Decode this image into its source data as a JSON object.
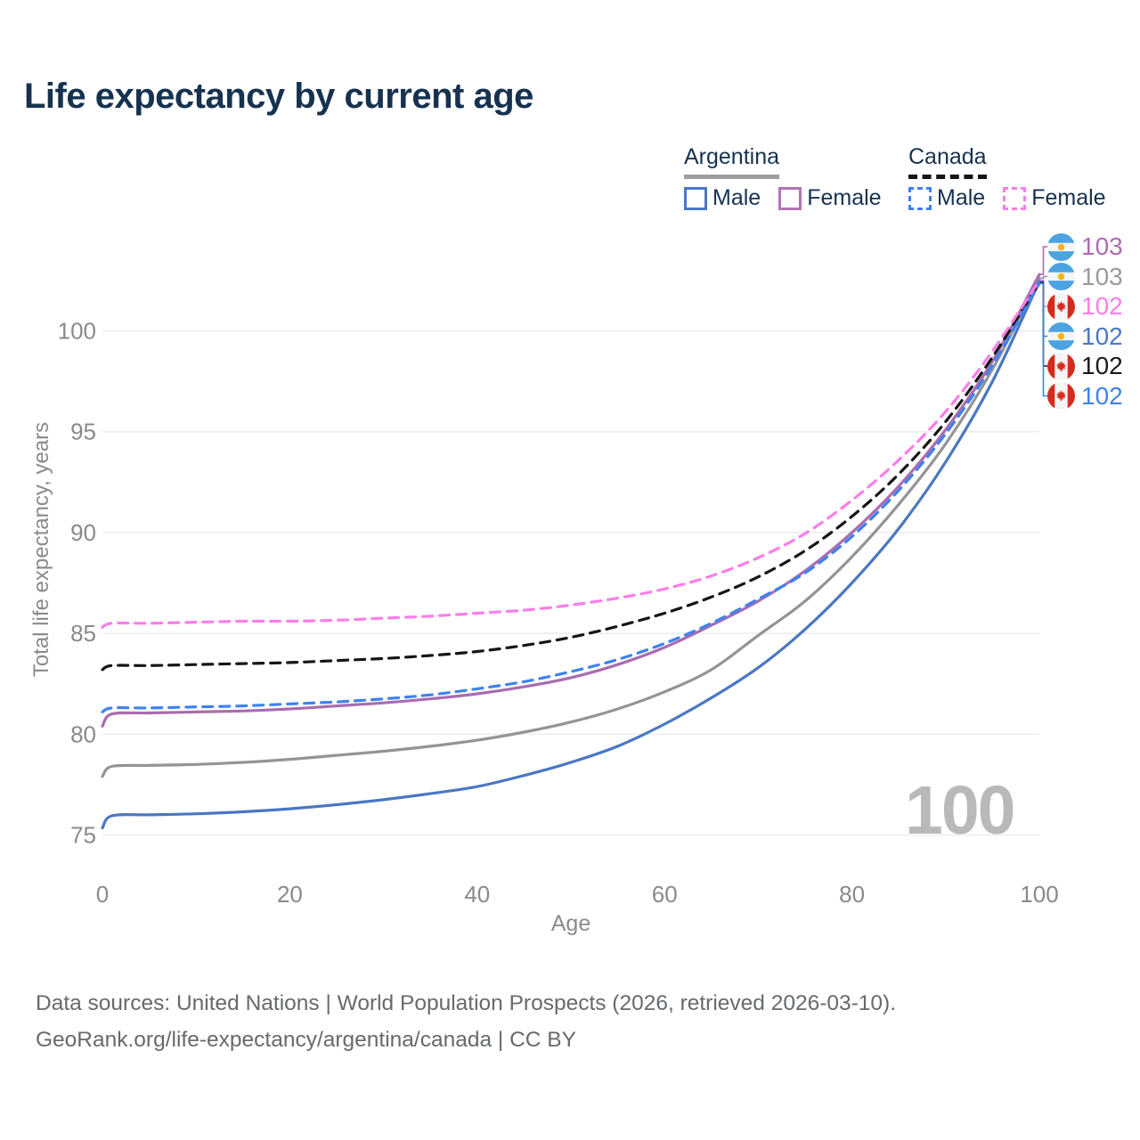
{
  "title": "Life expectancy by current age",
  "colors": {
    "title_text": "#16324f",
    "grid": "#ececec",
    "axis_text": "#8a8a8a",
    "watermark": "#b9b9b9",
    "argentina_male": "#4a77c4",
    "argentina_female": "#a96cb0",
    "argentina_both": "#949494",
    "canada_male": "#3e82f0",
    "canada_female": "#fc7de9",
    "canada_both": "#161616",
    "flag_argentina_blue": "#4ba3e2",
    "flag_argentina_sun": "#f6b40e",
    "flag_canada_red": "#d52b1e"
  },
  "legend": {
    "groups": [
      {
        "label": "Argentina",
        "line_style": "solid",
        "underline_color": "#9e9e9e",
        "items": [
          {
            "label": "Male",
            "color": "#4a77c4"
          },
          {
            "label": "Female",
            "color": "#b473b6"
          }
        ]
      },
      {
        "label": "Canada",
        "line_style": "dashed",
        "underline_color": "#151515",
        "items": [
          {
            "label": "Male",
            "color": "#3e82f0"
          },
          {
            "label": "Female",
            "color": "#fc7de9"
          }
        ]
      }
    ]
  },
  "watermark": "100",
  "end_labels": [
    {
      "flag": "argentina",
      "series": "Argentina Female",
      "value": "103",
      "color": "#ad6cb3"
    },
    {
      "flag": "argentina",
      "series": "Argentina Both sexes",
      "value": "103",
      "color": "#9a9a9a"
    },
    {
      "flag": "canada",
      "series": "Canada Female",
      "value": "102",
      "color": "#fc7de9"
    },
    {
      "flag": "argentina",
      "series": "Argentina Male",
      "value": "102",
      "color": "#4a77c4"
    },
    {
      "flag": "canada",
      "series": "Canada Both sexes",
      "value": "102",
      "color": "#1a1a1a"
    },
    {
      "flag": "canada",
      "series": "Canada Male",
      "value": "102",
      "color": "#3e82f0"
    }
  ],
  "footer": {
    "line1": "Data sources: United Nations | World Population Prospects (2026, retrieved 2026-03-10).",
    "line2": "GeoRank.org/life-expectancy/argentina/canada | CC BY"
  },
  "chart_data": {
    "type": "line",
    "title": "Life expectancy by current age",
    "xlabel": "Age",
    "ylabel": "Total life expectancy, years",
    "x_ticks": [
      0,
      20,
      40,
      60,
      80,
      100
    ],
    "y_ticks": [
      75,
      80,
      85,
      90,
      95,
      100
    ],
    "xlim": [
      0,
      100
    ],
    "ylim": [
      73.5,
      104.5
    ],
    "grid": "horizontal",
    "legend_position": "top-right",
    "x": [
      0,
      1,
      5,
      10,
      15,
      20,
      25,
      30,
      35,
      40,
      45,
      50,
      55,
      60,
      65,
      70,
      75,
      80,
      85,
      90,
      95,
      100
    ],
    "series": [
      {
        "name": "Argentina Both sexes",
        "country": "Argentina",
        "sex": "Both",
        "color": "#949494",
        "dash": false,
        "values": [
          77.9,
          78.4,
          78.45,
          78.5,
          78.6,
          78.75,
          78.95,
          79.15,
          79.4,
          79.7,
          80.1,
          80.6,
          81.25,
          82.1,
          83.2,
          84.9,
          86.6,
          88.8,
          91.4,
          94.4,
          98.1,
          102.6
        ]
      },
      {
        "name": "Argentina Male",
        "country": "Argentina",
        "sex": "Male",
        "color": "#4a77c4",
        "dash": false,
        "values": [
          75.35,
          75.95,
          76.0,
          76.05,
          76.15,
          76.3,
          76.5,
          76.75,
          77.05,
          77.4,
          77.95,
          78.6,
          79.4,
          80.5,
          81.8,
          83.3,
          85.2,
          87.5,
          90.2,
          93.5,
          97.5,
          102.45
        ]
      },
      {
        "name": "Argentina Female",
        "country": "Argentina",
        "sex": "Female",
        "color": "#a96cb0",
        "dash": false,
        "values": [
          80.4,
          81.0,
          81.05,
          81.1,
          81.15,
          81.25,
          81.4,
          81.55,
          81.75,
          82.0,
          82.35,
          82.8,
          83.45,
          84.3,
          85.4,
          86.6,
          88.1,
          90.0,
          92.3,
          95.1,
          98.5,
          102.8
        ]
      },
      {
        "name": "Canada Both sexes",
        "country": "Canada",
        "sex": "Both",
        "color": "#161616",
        "dash": true,
        "values": [
          83.2,
          83.4,
          83.4,
          83.45,
          83.5,
          83.55,
          83.65,
          83.75,
          83.9,
          84.1,
          84.4,
          84.8,
          85.35,
          86.0,
          86.8,
          87.8,
          89.1,
          90.8,
          92.9,
          95.5,
          98.7,
          102.4
        ]
      },
      {
        "name": "Canada Male",
        "country": "Canada",
        "sex": "Male",
        "color": "#3e82f0",
        "dash": true,
        "values": [
          81.1,
          81.3,
          81.3,
          81.35,
          81.4,
          81.5,
          81.6,
          81.75,
          81.95,
          82.25,
          82.6,
          83.1,
          83.7,
          84.5,
          85.5,
          86.7,
          88.0,
          89.8,
          92.1,
          94.9,
          98.3,
          102.35
        ]
      },
      {
        "name": "Canada Female",
        "country": "Canada",
        "sex": "Female",
        "color": "#fc7de9",
        "dash": true,
        "values": [
          85.3,
          85.5,
          85.5,
          85.55,
          85.6,
          85.6,
          85.65,
          85.75,
          85.85,
          86.0,
          86.15,
          86.4,
          86.75,
          87.2,
          87.85,
          88.75,
          89.95,
          91.6,
          93.6,
          96.0,
          99.0,
          102.5
        ]
      }
    ]
  }
}
